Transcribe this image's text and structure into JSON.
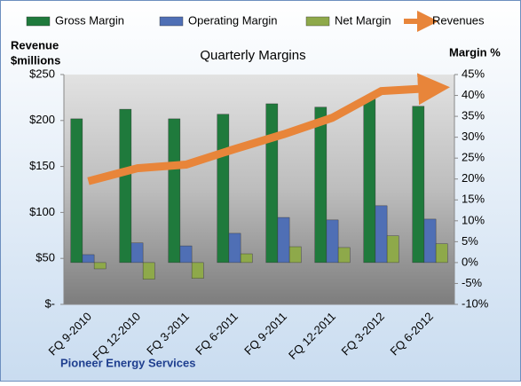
{
  "chart_data": {
    "type": "bar",
    "title": "Quarterly Margins",
    "ylabel": [
      "Revenue",
      "$millions"
    ],
    "y2label": "Margin %",
    "source": "Pioneer Energy Services",
    "categories": [
      "FQ 9-2010",
      "FQ 12-2010",
      "FQ 3-2011",
      "FQ 6-2011",
      "FQ 9-2011",
      "FQ 12-2011",
      "FQ 3-2012",
      "FQ 6-2012"
    ],
    "series": [
      {
        "name": "Gross Margin",
        "color": "#1f7a3c",
        "axis": "y2",
        "values": [
          34.4,
          36.7,
          34.4,
          35.5,
          38.0,
          37.2,
          39.5,
          37.4
        ]
      },
      {
        "name": "Operating Margin",
        "color": "#4f6fb5",
        "axis": "y2",
        "values": [
          1.9,
          4.7,
          4.0,
          7.0,
          10.8,
          10.2,
          13.6,
          10.4
        ]
      },
      {
        "name": "Net Margin",
        "color": "#8ea94a",
        "axis": "y2",
        "values": [
          -1.5,
          -4.0,
          -3.8,
          2.1,
          3.8,
          3.6,
          6.4,
          4.5
        ]
      },
      {
        "name": "Revenues",
        "color": "#e8853a",
        "axis": "y",
        "type": "line",
        "values": [
          134,
          148,
          152,
          169,
          185,
          203,
          232,
          235
        ]
      }
    ],
    "ylim": [
      0,
      250
    ],
    "yticks": [
      {
        "value": 0,
        "label": "$-"
      },
      {
        "value": 50,
        "label": "$50"
      },
      {
        "value": 100,
        "label": "$100"
      },
      {
        "value": 150,
        "label": "$150"
      },
      {
        "value": 200,
        "label": "$200"
      },
      {
        "value": 250,
        "label": "$250"
      }
    ],
    "y2lim": [
      -10,
      45
    ],
    "y2ticks": [
      {
        "value": -10,
        "label": "-10%"
      },
      {
        "value": -5,
        "label": "-5%"
      },
      {
        "value": 0,
        "label": "0%"
      },
      {
        "value": 5,
        "label": "5%"
      },
      {
        "value": 10,
        "label": "10%"
      },
      {
        "value": 15,
        "label": "15%"
      },
      {
        "value": 20,
        "label": "20%"
      },
      {
        "value": 25,
        "label": "25%"
      },
      {
        "value": 30,
        "label": "30%"
      },
      {
        "value": 35,
        "label": "35%"
      },
      {
        "value": 40,
        "label": "40%"
      },
      {
        "value": 45,
        "label": "45%"
      }
    ],
    "grid": false
  }
}
